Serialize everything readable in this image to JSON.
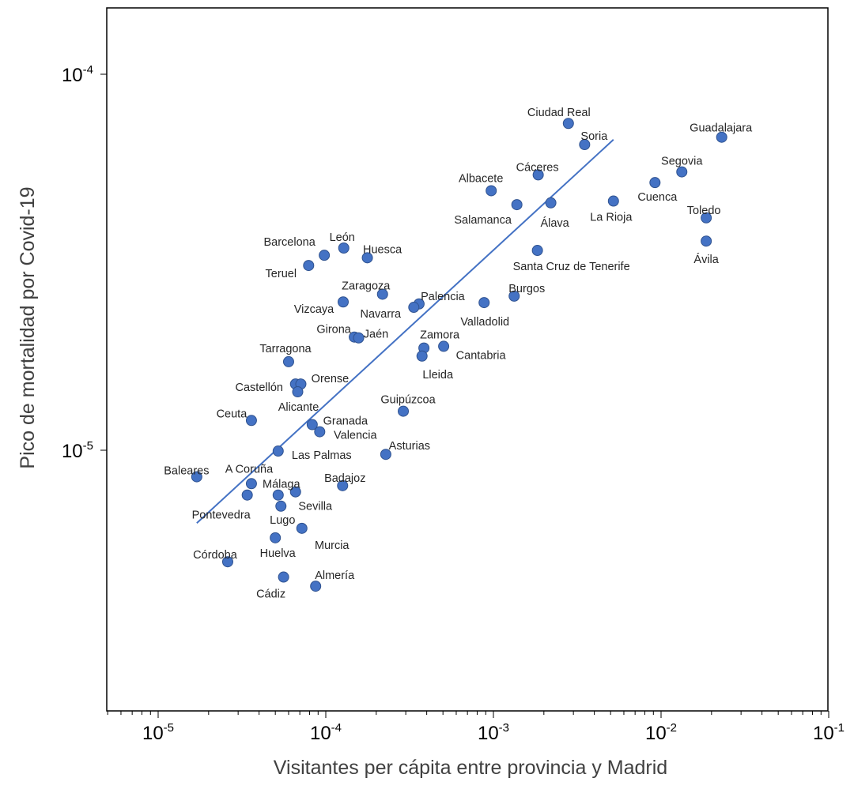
{
  "chart_data": {
    "type": "scatter",
    "xlabel": "Visitantes per cápita entre provincia y Madrid",
    "ylabel": "Pico de mortalidad por Covid-19",
    "x_scale": "log",
    "y_scale": "log",
    "xlim": [
      5e-06,
      0.1
    ],
    "ylim": [
      2e-06,
      0.00015
    ],
    "x_ticks": [
      {
        "value": 1e-05,
        "base": "10",
        "exp": "-5"
      },
      {
        "value": 0.0001,
        "base": "10",
        "exp": "-4"
      },
      {
        "value": 0.001,
        "base": "10",
        "exp": "-3"
      },
      {
        "value": 0.01,
        "base": "10",
        "exp": "-2"
      },
      {
        "value": 0.1,
        "base": "10",
        "exp": "-1"
      }
    ],
    "y_ticks": [
      {
        "value": 1e-05,
        "base": "10",
        "exp": "-5"
      },
      {
        "value": 0.0001,
        "base": "10",
        "exp": "-4"
      }
    ],
    "grid": false,
    "marker_color": "#4472c4",
    "marker_edge": "#2f528f",
    "line_color": "#4472c4",
    "trend_line": {
      "x": [
        1.7e-05,
        0.0052
      ],
      "y": [
        6.4e-06,
        6.7e-05
      ]
    },
    "points": [
      {
        "name": "Ciudad Real",
        "x": 0.0028,
        "y": 7.4e-05
      },
      {
        "name": "Soria",
        "x": 0.0035,
        "y": 6.5e-05
      },
      {
        "name": "Guadalajara",
        "x": 0.023,
        "y": 6.8e-05
      },
      {
        "name": "Cáceres",
        "x": 0.00185,
        "y": 5.4e-05
      },
      {
        "name": "Segovia",
        "x": 0.0133,
        "y": 5.5e-05
      },
      {
        "name": "Albacete",
        "x": 0.00097,
        "y": 4.9e-05
      },
      {
        "name": "Cuenca",
        "x": 0.0092,
        "y": 5.15e-05
      },
      {
        "name": "Salamanca",
        "x": 0.00138,
        "y": 4.5e-05
      },
      {
        "name": "Álava",
        "x": 0.0022,
        "y": 4.55e-05
      },
      {
        "name": "La Rioja",
        "x": 0.0052,
        "y": 4.6e-05
      },
      {
        "name": "Toledo",
        "x": 0.0186,
        "y": 4.15e-05
      },
      {
        "name": "Ávila",
        "x": 0.0186,
        "y": 3.6e-05
      },
      {
        "name": "León",
        "x": 0.000128,
        "y": 3.45e-05
      },
      {
        "name": "Barcelona",
        "x": 9.8e-05,
        "y": 3.3e-05
      },
      {
        "name": "Huesca",
        "x": 0.000177,
        "y": 3.25e-05
      },
      {
        "name": "Teruel",
        "x": 7.9e-05,
        "y": 3.1e-05
      },
      {
        "name": "Santa Cruz de Tenerife",
        "x": 0.00183,
        "y": 3.4e-05
      },
      {
        "name": "Zaragoza",
        "x": 0.000218,
        "y": 2.6e-05
      },
      {
        "name": "Vizcaya",
        "x": 0.000127,
        "y": 2.48e-05
      },
      {
        "name": "Palencia",
        "x": 0.00036,
        "y": 2.45e-05
      },
      {
        "name": "Navarra",
        "x": 0.000335,
        "y": 2.4e-05
      },
      {
        "name": "Burgos",
        "x": 0.00133,
        "y": 2.57e-05
      },
      {
        "name": "Valladolid",
        "x": 0.00088,
        "y": 2.47e-05
      },
      {
        "name": "Girona",
        "x": 0.000148,
        "y": 2e-05
      },
      {
        "name": "Jaén",
        "x": 0.000157,
        "y": 1.99e-05
      },
      {
        "name": "Zamora",
        "x": 0.000385,
        "y": 1.87e-05
      },
      {
        "name": "Cantabria",
        "x": 0.000505,
        "y": 1.89e-05
      },
      {
        "name": "Lleida",
        "x": 0.000375,
        "y": 1.78e-05
      },
      {
        "name": "Tarragona",
        "x": 6e-05,
        "y": 1.72e-05
      },
      {
        "name": "Castellón",
        "x": 6.6e-05,
        "y": 1.5e-05
      },
      {
        "name": "Orense",
        "x": 7.1e-05,
        "y": 1.5e-05
      },
      {
        "name": "Alicante",
        "x": 6.8e-05,
        "y": 1.43e-05
      },
      {
        "name": "Guipúzcoa",
        "x": 0.00029,
        "y": 1.27e-05
      },
      {
        "name": "Ceuta",
        "x": 3.6e-05,
        "y": 1.2e-05
      },
      {
        "name": "Granada",
        "x": 8.3e-05,
        "y": 1.17e-05
      },
      {
        "name": "Valencia",
        "x": 9.2e-05,
        "y": 1.12e-05
      },
      {
        "name": "Las Palmas",
        "x": 5.2e-05,
        "y": 9.95e-06
      },
      {
        "name": "Asturias",
        "x": 0.000228,
        "y": 9.75e-06
      },
      {
        "name": "Baleares",
        "x": 1.7e-05,
        "y": 8.5e-06
      },
      {
        "name": "A Coruña",
        "x": 3.6e-05,
        "y": 8.15e-06
      },
      {
        "name": "Badajoz",
        "x": 0.000126,
        "y": 8.05e-06
      },
      {
        "name": "Málaga",
        "x": 5.2e-05,
        "y": 7.6e-06
      },
      {
        "name": "Pontevedra",
        "x": 3.4e-05,
        "y": 7.6e-06
      },
      {
        "name": "Sevilla",
        "x": 6.6e-05,
        "y": 7.75e-06
      },
      {
        "name": "Lugo",
        "x": 5.4e-05,
        "y": 7.1e-06
      },
      {
        "name": "Murcia",
        "x": 7.2e-05,
        "y": 6.2e-06
      },
      {
        "name": "Huelva",
        "x": 5e-05,
        "y": 5.85e-06
      },
      {
        "name": "Córdoba",
        "x": 2.6e-05,
        "y": 5.05e-06
      },
      {
        "name": "Cádiz",
        "x": 5.6e-05,
        "y": 4.6e-06
      },
      {
        "name": "Almería",
        "x": 8.7e-05,
        "y": 4.35e-06
      }
    ]
  }
}
